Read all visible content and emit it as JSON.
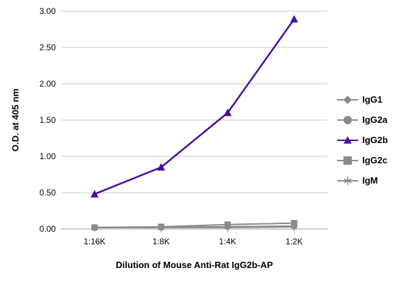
{
  "chart_data": {
    "type": "line",
    "title": "",
    "xlabel": "Dilution of Mouse Anti-Rat IgG2b-AP",
    "ylabel": "O.D. at 405 nm",
    "categories": [
      "1:16K",
      "1:8K",
      "1:4K",
      "1:2K"
    ],
    "ylim": [
      0,
      3
    ],
    "yticks": [
      0,
      0.5,
      1,
      1.5,
      2,
      2.5,
      3
    ],
    "ytick_labels": [
      "0.00",
      "0.50",
      "1.00",
      "1.50",
      "2.00",
      "2.50",
      "3.00"
    ],
    "grid": true,
    "legend_position": "right",
    "colors": {
      "accent": "#4a0d9e",
      "muted": "#8a8a8a",
      "grid": "#c9c9c9",
      "axis": "#9a9a9a"
    },
    "series": [
      {
        "name": "IgG1",
        "marker": "diamond",
        "color": "#8a8a8a",
        "values": [
          0.02,
          0.02,
          0.03,
          0.03
        ]
      },
      {
        "name": "IgG2a",
        "marker": "circle",
        "color": "#8a8a8a",
        "values": [
          0.02,
          0.02,
          0.03,
          0.04
        ]
      },
      {
        "name": "IgG2b",
        "marker": "triangle",
        "color": "#4a0d9e",
        "values": [
          0.48,
          0.85,
          1.6,
          2.89
        ]
      },
      {
        "name": "IgG2c",
        "marker": "square",
        "color": "#8a8a8a",
        "values": [
          0.02,
          0.03,
          0.06,
          0.08
        ]
      },
      {
        "name": "IgM",
        "marker": "asterisk",
        "color": "#8a8a8a",
        "values": [
          0.02,
          0.02,
          0.02,
          0.03
        ]
      }
    ]
  }
}
